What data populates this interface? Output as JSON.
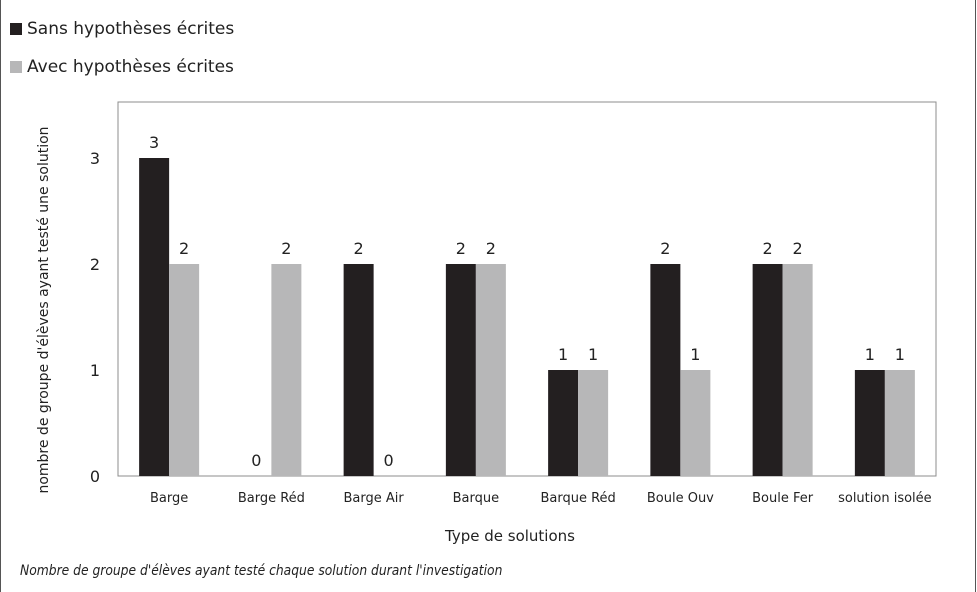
{
  "legend": [
    {
      "label": "Sans hypothèses écrites",
      "color": "#231f20"
    },
    {
      "label": "Avec hypothèses écrites",
      "color": "#b7b7b8"
    }
  ],
  "caption": "Nombre de groupe d'élèves ayant testé chaque solution durant l'investigation",
  "chart_data": {
    "type": "bar",
    "categories": [
      "Barge",
      "Barge Réd",
      "Barge Air",
      "Barque",
      "Barque Réd",
      "Boule Ouv",
      "Boule Fer",
      "solution isolée"
    ],
    "series": [
      {
        "name": "Sans hypothèses écrites",
        "values": [
          3,
          0,
          2,
          2,
          1,
          2,
          2,
          1
        ],
        "color": "#231f20"
      },
      {
        "name": "Avec hypothèses écrites",
        "values": [
          2,
          2,
          0,
          2,
          1,
          1,
          2,
          1
        ],
        "color": "#b7b7b8"
      }
    ],
    "yticks": [
      0,
      1,
      2,
      3
    ],
    "ylim": [
      0,
      3.5
    ],
    "xlabel": "Type de solutions",
    "ylabel": "nombre de groupe d'élèves ayant testé une solution",
    "grid": false,
    "data_labels": true
  }
}
